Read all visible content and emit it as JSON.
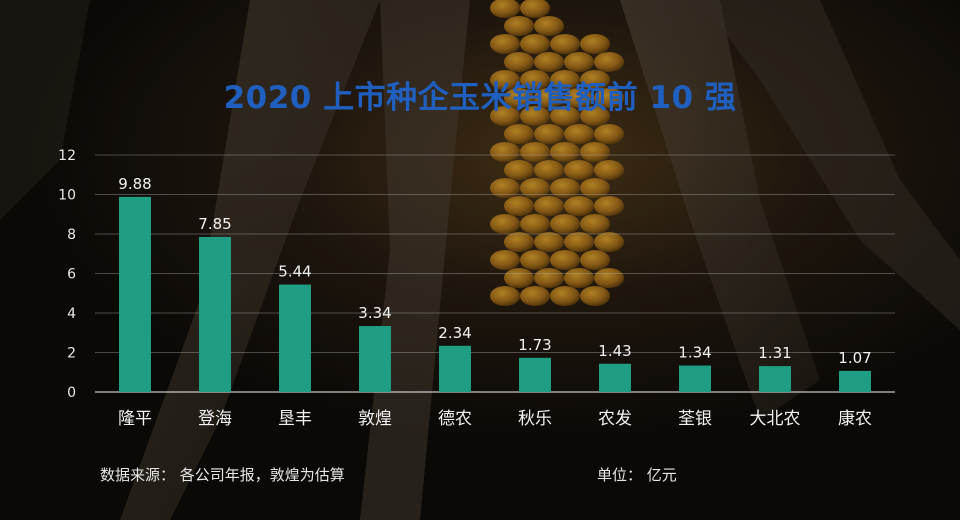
{
  "chart_data": {
    "type": "bar",
    "title": "2020 上市种企玉米销售额前 10 强",
    "categories": [
      "隆平",
      "登海",
      "垦丰",
      "敦煌",
      "德农",
      "秋乐",
      "农发",
      "荃银",
      "大北农",
      "康农"
    ],
    "values": [
      9.88,
      7.85,
      5.44,
      3.34,
      2.34,
      1.73,
      1.43,
      1.34,
      1.31,
      1.07
    ],
    "data_labels": [
      "9.88",
      "7.85",
      "5.44",
      "3.34",
      "2.34",
      "1.73",
      "1.43",
      "1.34",
      "1.31",
      "1.07"
    ],
    "y_ticks": [
      0,
      2,
      4,
      6,
      8,
      10,
      12
    ],
    "ylim": [
      0,
      12
    ],
    "xlabel": "",
    "ylabel": "",
    "grid": true,
    "bar_color": "#1f9e84",
    "title_color": "#1f5fbf"
  },
  "footer": {
    "source": "数据来源： 各公司年报，敦煌为估算",
    "unit": "单位： 亿元"
  }
}
